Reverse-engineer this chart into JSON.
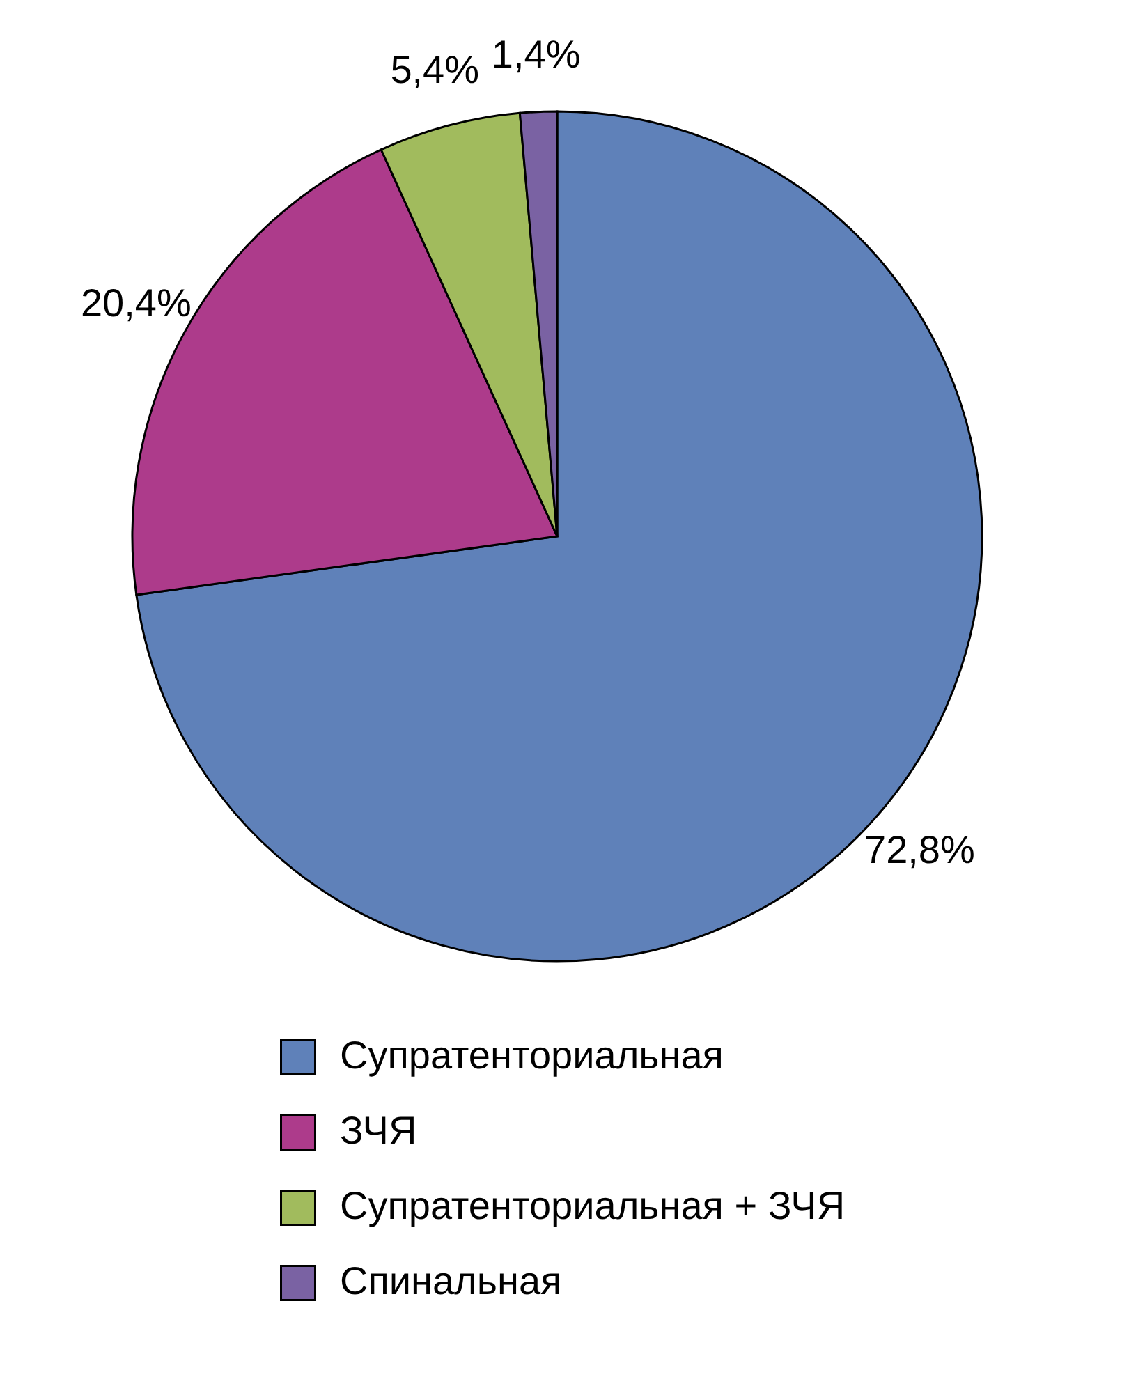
{
  "chart_data": {
    "type": "pie",
    "categories": [
      "Супратенториальная",
      "ЗЧЯ",
      "Супратенториальная + ЗЧЯ",
      "Спинальная"
    ],
    "values": [
      72.8,
      20.4,
      5.4,
      1.4
    ],
    "colors": [
      "#5f81b9",
      "#ad3b8b",
      "#a1bb5d",
      "#7a62a3"
    ],
    "value_labels": [
      "72,8%",
      "20,4%",
      "5,4%",
      "1,4%"
    ],
    "legend": "bottom"
  }
}
